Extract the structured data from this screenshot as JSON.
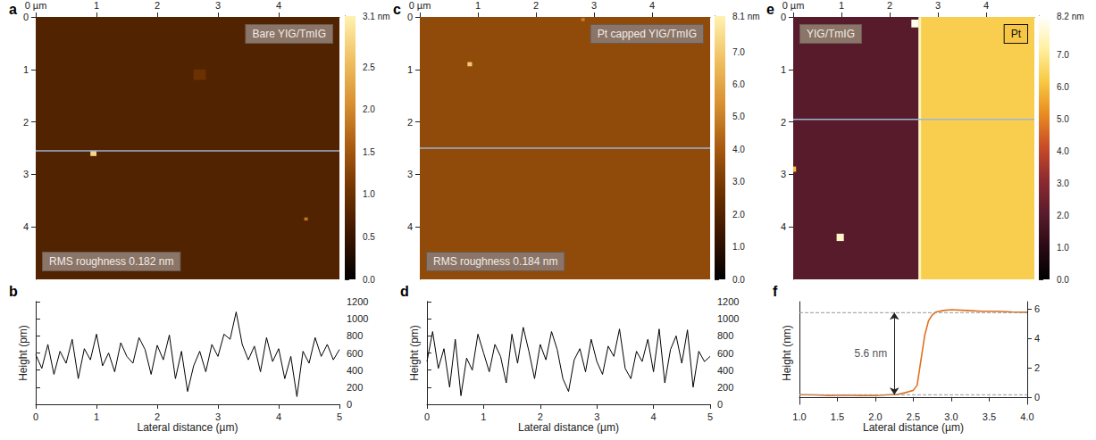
{
  "chart_data": [
    {
      "type": "heatmap",
      "panel": "a",
      "label_top_right": "Bare YIG/TmIG",
      "label_bottom_left": "RMS roughness 0.182 nm",
      "xlim": [
        0,
        5
      ],
      "xticks": [
        {
          "value": 0,
          "label": "0 µm"
        },
        1,
        2,
        3,
        4
      ],
      "ylim": [
        0,
        5
      ],
      "yticks": [
        0,
        1,
        2,
        3,
        4
      ],
      "cells": [
        [
          0,
          5,
          0,
          5,
          0.75
        ],
        [
          2.6,
          2.8,
          1.0,
          1.2,
          1.0
        ],
        [
          0.9,
          1.0,
          2.55,
          2.65,
          2.8
        ],
        [
          4.42,
          4.48,
          3.82,
          3.88,
          1.8
        ]
      ],
      "profile_y": 2.55,
      "colorbar": {
        "range": [
          0,
          3.1
        ],
        "ticks": [
          {
            "value": 0,
            "label": "0.0"
          },
          0.5,
          {
            "value": 1,
            "label": "1.0"
          },
          1.5,
          {
            "value": 2,
            "label": "2.0"
          },
          2.5,
          {
            "value": 3.1,
            "label": "3.1 nm"
          }
        ],
        "colors": [
          "#000000",
          "#3a1500",
          "#6e3300",
          "#a85a10",
          "#d89030",
          "#f0c060",
          "#fff2b0"
        ]
      }
    },
    {
      "type": "line",
      "panel": "b",
      "color": "#000000",
      "x_label": "Lateral distance (µm)",
      "y_label": "Height (pm)",
      "xlim": [
        0,
        5
      ],
      "xticks": [
        0,
        1,
        2,
        3,
        4,
        5
      ],
      "ylim": [
        0,
        1200
      ],
      "yticks": [
        0,
        200,
        400,
        600,
        800,
        1000,
        1200
      ],
      "x": [
        0,
        0.1,
        0.2,
        0.3,
        0.4,
        0.5,
        0.6,
        0.7,
        0.8,
        0.9,
        1.0,
        1.1,
        1.2,
        1.3,
        1.4,
        1.5,
        1.6,
        1.7,
        1.8,
        1.9,
        2.0,
        2.1,
        2.2,
        2.3,
        2.4,
        2.5,
        2.6,
        2.7,
        2.8,
        2.9,
        3.0,
        3.1,
        3.2,
        3.3,
        3.4,
        3.5,
        3.6,
        3.7,
        3.8,
        3.9,
        4.0,
        4.1,
        4.2,
        4.3,
        4.4,
        4.5,
        4.6,
        4.7,
        4.8,
        4.9,
        5.0
      ],
      "values": [
        580,
        420,
        700,
        350,
        620,
        480,
        760,
        300,
        650,
        520,
        820,
        450,
        600,
        380,
        720,
        560,
        480,
        780,
        640,
        350,
        690,
        520,
        810,
        300,
        620,
        150,
        450,
        620,
        380,
        700,
        560,
        820,
        760,
        1080,
        700,
        520,
        680,
        380,
        780,
        500,
        650,
        300,
        560,
        90,
        620,
        480,
        780,
        560,
        700,
        520,
        640
      ]
    },
    {
      "type": "heatmap",
      "panel": "c",
      "label_top_right": "Pt capped YIG/TmIG",
      "label_bottom_left": "RMS roughness 0.184 nm",
      "xlim": [
        0,
        5
      ],
      "xticks": [
        {
          "value": 0,
          "label": "0 µm"
        },
        1,
        2,
        3,
        4
      ],
      "ylim": [
        0,
        5
      ],
      "yticks": [
        0,
        1,
        2,
        3,
        4
      ],
      "cells": [
        [
          0,
          5,
          0,
          5,
          3.5
        ],
        [
          0.82,
          0.9,
          0.86,
          0.94,
          7.0
        ],
        [
          2.78,
          2.84,
          0.02,
          0.08,
          5.0
        ]
      ],
      "profile_y": 2.5,
      "colorbar": {
        "range": [
          0,
          8.1
        ],
        "ticks": [
          {
            "value": 0,
            "label": "0.0"
          },
          {
            "value": 1,
            "label": "1.0"
          },
          {
            "value": 2,
            "label": "2.0"
          },
          {
            "value": 3,
            "label": "3.0"
          },
          {
            "value": 4,
            "label": "4.0"
          },
          {
            "value": 5,
            "label": "5.0"
          },
          {
            "value": 6,
            "label": "6.0"
          },
          {
            "value": 7,
            "label": "7.0"
          },
          {
            "value": 8.1,
            "label": "8.1 nm"
          }
        ],
        "colors": [
          "#000000",
          "#3a1500",
          "#6e3300",
          "#a85a10",
          "#d89030",
          "#f0c060",
          "#fff2b0"
        ]
      }
    },
    {
      "type": "line",
      "panel": "d",
      "color": "#000000",
      "x_label": "Lateral distance (µm)",
      "y_label": "Height (pm)",
      "xlim": [
        0,
        5
      ],
      "xticks": [
        0,
        1,
        2,
        3,
        4,
        5
      ],
      "ylim": [
        0,
        1200
      ],
      "yticks": [
        0,
        200,
        400,
        600,
        800,
        1000,
        1200
      ],
      "x": [
        0,
        0.1,
        0.2,
        0.3,
        0.4,
        0.5,
        0.6,
        0.7,
        0.8,
        0.9,
        1.0,
        1.1,
        1.2,
        1.3,
        1.4,
        1.5,
        1.6,
        1.7,
        1.8,
        1.9,
        2.0,
        2.1,
        2.2,
        2.3,
        2.4,
        2.5,
        2.6,
        2.7,
        2.8,
        2.9,
        3.0,
        3.1,
        3.2,
        3.3,
        3.4,
        3.5,
        3.6,
        3.7,
        3.8,
        3.9,
        4.0,
        4.1,
        4.2,
        4.3,
        4.4,
        4.5,
        4.6,
        4.7,
        4.8,
        4.9,
        5.0
      ],
      "values": [
        500,
        850,
        420,
        650,
        200,
        760,
        100,
        540,
        400,
        820,
        600,
        380,
        700,
        560,
        250,
        820,
        480,
        900,
        620,
        300,
        700,
        520,
        850,
        640,
        300,
        150,
        520,
        650,
        380,
        760,
        500,
        350,
        680,
        560,
        880,
        420,
        300,
        620,
        500,
        760,
        380,
        880,
        250,
        640,
        800,
        480,
        870,
        200,
        620,
        500,
        560
      ]
    },
    {
      "type": "heatmap",
      "panel": "e",
      "label_top_left": "YIG/TmIG",
      "label_top_right": "Pt",
      "xlim": [
        0,
        5
      ],
      "xticks": [
        {
          "value": 0,
          "label": "0 µm"
        },
        1,
        2,
        3,
        4
      ],
      "ylim": [
        0,
        5
      ],
      "yticks": [
        0,
        1,
        2,
        3,
        4
      ],
      "cells": [
        [
          0,
          2.6,
          0,
          5,
          2.0
        ],
        [
          2.65,
          5,
          0,
          5,
          6.3
        ],
        [
          2.6,
          2.65,
          0,
          5,
          7.4
        ],
        [
          2.45,
          2.6,
          0.05,
          0.2,
          8.0
        ],
        [
          0.9,
          1.05,
          4.13,
          4.27,
          7.6
        ],
        [
          0,
          0.06,
          2.85,
          2.95,
          6.0
        ]
      ],
      "profile_y": 1.95,
      "colorbar": {
        "range": [
          0,
          8.2
        ],
        "ticks": [
          {
            "value": 0,
            "label": "0.0"
          },
          {
            "value": 1,
            "label": "1.0"
          },
          {
            "value": 2,
            "label": "2.0"
          },
          {
            "value": 3,
            "label": "3.0"
          },
          {
            "value": 4,
            "label": "4.0"
          },
          {
            "value": 5,
            "label": "5.0"
          },
          {
            "value": 6,
            "label": "6.0"
          },
          {
            "value": 7,
            "label": "7.0"
          },
          {
            "value": 8.2,
            "label": "8.2 nm"
          }
        ],
        "colors": [
          "#000000",
          "#2a0a14",
          "#5a1c2c",
          "#8c2a30",
          "#c84a28",
          "#e88a20",
          "#f8c840",
          "#fff0a0",
          "#ffffff"
        ]
      }
    },
    {
      "type": "line",
      "panel": "f",
      "color": "#e07020",
      "x_label": "Lateral distance (µm)",
      "y_label": "Height (nm)",
      "xlim": [
        1,
        4
      ],
      "xticks": [
        {
          "value": 1,
          "label": "1.0"
        },
        1.5,
        {
          "value": 2,
          "label": "2.0"
        },
        2.5,
        {
          "value": 3,
          "label": "3.0"
        },
        3.5,
        {
          "value": 4,
          "label": "4.0"
        }
      ],
      "ylim": [
        -0.5,
        6.5
      ],
      "yticks": [
        0,
        2,
        4,
        6
      ],
      "x": [
        1.0,
        1.2,
        1.4,
        1.6,
        1.8,
        2.0,
        2.1,
        2.2,
        2.3,
        2.4,
        2.5,
        2.55,
        2.6,
        2.65,
        2.7,
        2.75,
        2.8,
        2.9,
        3.0,
        3.2,
        3.4,
        3.6,
        3.8,
        4.0
      ],
      "values": [
        0.15,
        0.14,
        0.1,
        0.12,
        0.1,
        0.1,
        0.12,
        0.15,
        0.18,
        0.3,
        0.45,
        0.8,
        2.5,
        4.2,
        5.2,
        5.6,
        5.8,
        5.9,
        5.95,
        5.9,
        5.85,
        5.85,
        5.8,
        5.78
      ],
      "annotation": {
        "text": "5.6 nm",
        "x": 2.25,
        "from": 0.15,
        "to": 5.75
      }
    }
  ]
}
